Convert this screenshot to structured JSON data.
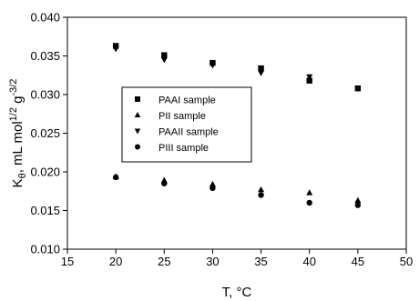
{
  "chart_data": {
    "type": "scatter",
    "xlabel": "T, °C",
    "ylabel": {
      "base": "K",
      "subscript": "θ",
      "rest1": ", mL mol",
      "sup1": "1/2",
      "rest2": " g",
      "sup2": "-3/2"
    },
    "xlim": [
      15,
      50
    ],
    "ylim": [
      0.01,
      0.04
    ],
    "xticks": [
      "15",
      "20",
      "25",
      "30",
      "35",
      "40",
      "45",
      "50"
    ],
    "yticks": [
      "0.010",
      "0.015",
      "0.020",
      "0.025",
      "0.030",
      "0.035",
      "0.040"
    ],
    "grid": false,
    "legend_placement": "center-left",
    "series": [
      {
        "name": "PAAI sample",
        "marker": "square",
        "x": [
          20,
          25,
          30,
          35,
          40,
          45
        ],
        "y": [
          0.0363,
          0.0351,
          0.0341,
          0.0334,
          0.0318,
          0.0308
        ]
      },
      {
        "name": "PII sample",
        "marker": "triangle-up",
        "x": [
          20,
          25,
          30,
          35,
          40,
          45
        ],
        "y": [
          0.0194,
          0.0189,
          0.0184,
          0.0177,
          0.0173,
          0.0163
        ]
      },
      {
        "name": "PAAII sample",
        "marker": "triangle-down",
        "x": [
          20,
          25,
          30,
          35,
          40,
          45
        ],
        "y": [
          0.0359,
          0.0345,
          0.0338,
          0.0328,
          0.0323,
          0.0308
        ]
      },
      {
        "name": "PIII sample",
        "marker": "circle",
        "x": [
          20,
          25,
          30,
          35,
          40,
          45
        ],
        "y": [
          0.0193,
          0.0185,
          0.0179,
          0.017,
          0.016,
          0.0157
        ]
      }
    ]
  }
}
